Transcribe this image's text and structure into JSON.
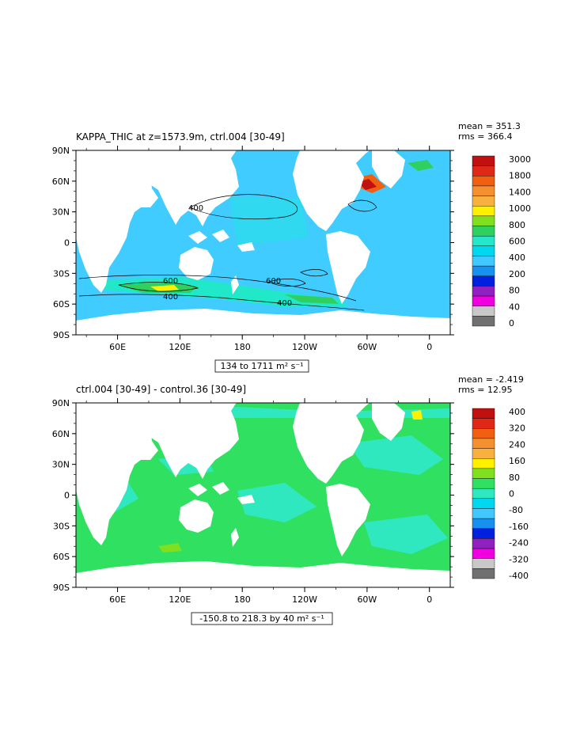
{
  "panels": [
    {
      "title": "KAPPA_THIC at z=1573.9m, ctrl.004 [30-49]",
      "mean": "mean = 351.3",
      "rms": "rms = 366.4",
      "range": "134 to 1711 m² s⁻¹",
      "colorbar": {
        "labels": [
          "3000",
          "1800",
          "1400",
          "1000",
          "800",
          "600",
          "400",
          "200",
          "80",
          "40",
          "0"
        ],
        "colors": [
          "#c01010",
          "#e02818",
          "#f06010",
          "#f59030",
          "#f8b040",
          "#fff000",
          "#80e020",
          "#30d060",
          "#20e8c8",
          "#00d8f0",
          "#40c8ff",
          "#1890f0",
          "#0020e0",
          "#9020c0",
          "#f000e0",
          "#c8c8c8",
          "#707070"
        ]
      },
      "contour_labels": [
        "400",
        "600",
        "400",
        "600",
        "400"
      ]
    },
    {
      "title": "ctrl.004 [30-49] - control.36 [30-49]",
      "mean": "mean = -2.419",
      "rms": "rms = 12.95",
      "range": "-150.8 to 218.3 by 40 m² s⁻¹",
      "colorbar": {
        "labels": [
          "400",
          "320",
          "240",
          "160",
          "80",
          "0",
          "-80",
          "-160",
          "-240",
          "-320",
          "-400"
        ],
        "colors": [
          "#c01010",
          "#e02818",
          "#f06010",
          "#f59030",
          "#f8b040",
          "#fff000",
          "#80e020",
          "#30e060",
          "#30e8c0",
          "#00d8f0",
          "#40c8ff",
          "#1890f0",
          "#0020e0",
          "#9020c0",
          "#f000e0",
          "#c8c8c8",
          "#707070"
        ]
      }
    }
  ],
  "axes": {
    "lat_labels": [
      "90N",
      "60N",
      "30N",
      "0",
      "30S",
      "60S",
      "90S"
    ],
    "lon_labels": [
      "60E",
      "120E",
      "180",
      "120W",
      "60W",
      "0"
    ]
  },
  "colors": {
    "ocean_main": "#40ccff",
    "ocean_light": "#20e8d8",
    "ocean_green": "#30e060",
    "land": "#ffffff"
  }
}
